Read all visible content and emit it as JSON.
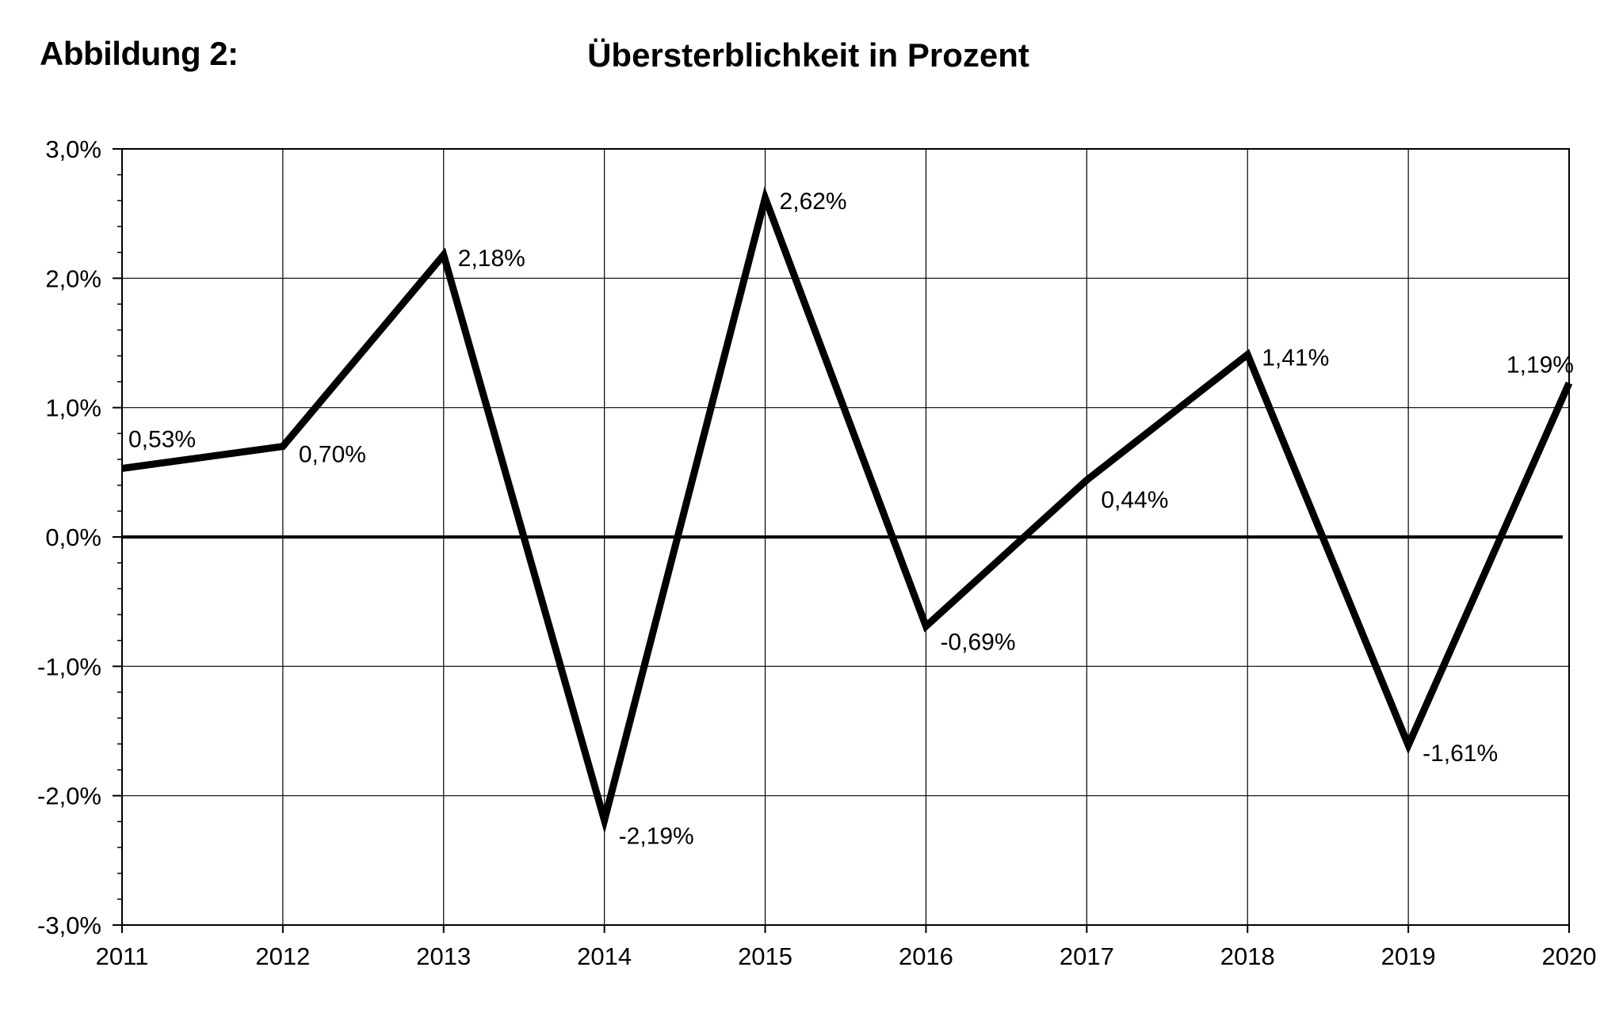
{
  "figure_label": "Abbildung 2:",
  "chart_data": {
    "type": "line",
    "title": "Übersterblichkeit in Prozent",
    "xlabel": "",
    "ylabel": "",
    "categories": [
      "2011",
      "2012",
      "2013",
      "2014",
      "2015",
      "2016",
      "2017",
      "2018",
      "2019",
      "2020"
    ],
    "series": [
      {
        "values": [
          0.53,
          0.7,
          2.18,
          -2.19,
          2.62,
          -0.69,
          0.44,
          1.41,
          -1.61,
          1.19
        ],
        "labels": [
          "0,53%",
          "0,70%",
          "2,18%",
          "-2,19%",
          "2,62%",
          "-0,69%",
          "0,44%",
          "1,41%",
          "-1,61%",
          "1,19%"
        ],
        "color": "#000000"
      }
    ],
    "ylim": [
      -3.0,
      3.0
    ],
    "yticks": [
      3.0,
      2.0,
      1.0,
      0.0,
      -1.0,
      -2.0,
      -3.0
    ],
    "ytick_labels": [
      "3,0%",
      "2,0%",
      "1,0%",
      "0,0%",
      "-1,0%",
      "-2,0%",
      "-3,0%"
    ],
    "grid": true,
    "legend": "none"
  }
}
